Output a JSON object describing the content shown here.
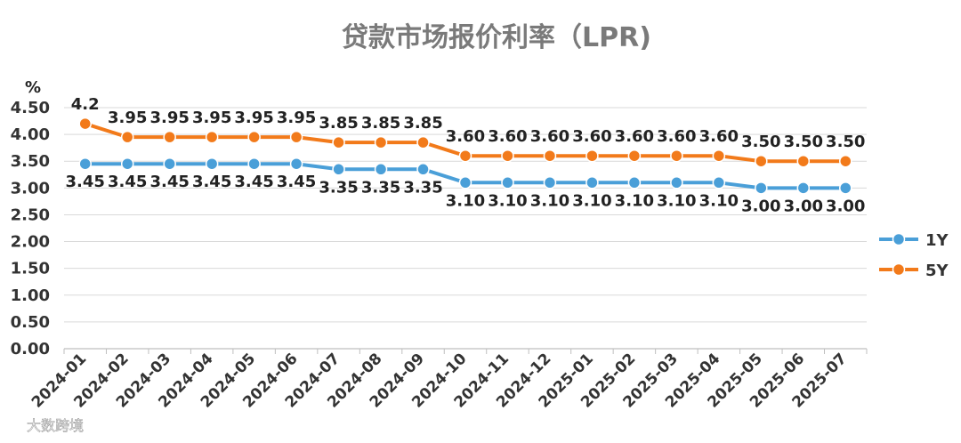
{
  "chart_data": {
    "type": "line",
    "title": "贷款市场报价利率（LPR)",
    "ylabel": "%",
    "xlabel": "",
    "ylim": [
      0,
      4.5
    ],
    "yticks": [
      "0.00",
      "0.50",
      "1.00",
      "1.50",
      "2.00",
      "2.50",
      "3.00",
      "3.50",
      "4.00",
      "4.50"
    ],
    "categories": [
      "2024-01",
      "2024-02",
      "2024-03",
      "2024-04",
      "2024-05",
      "2024-06",
      "2024-07",
      "2024-08",
      "2024-09",
      "2024-10",
      "2024-11",
      "2024-12",
      "2025-01",
      "2025-02",
      "2025-03",
      "2025-04",
      "2025-05",
      "2025-06",
      "2025-07"
    ],
    "grid": true,
    "legend_position": "right",
    "series": [
      {
        "name": "1Y",
        "color": "#4a9fd8",
        "values": [
          3.45,
          3.45,
          3.45,
          3.45,
          3.45,
          3.45,
          3.35,
          3.35,
          3.35,
          3.1,
          3.1,
          3.1,
          3.1,
          3.1,
          3.1,
          3.1,
          3.0,
          3.0,
          3.0
        ],
        "labels": [
          "3.45",
          "3.45",
          "3.45",
          "3.45",
          "3.45",
          "3.45",
          "3.35",
          "3.35",
          "3.35",
          "3.10",
          "3.10",
          "3.10",
          "3.10",
          "3.10",
          "3.10",
          "3.10",
          "3.00",
          "3.00",
          "3.00"
        ]
      },
      {
        "name": "5Y",
        "color": "#f27a1a",
        "values": [
          4.2,
          3.95,
          3.95,
          3.95,
          3.95,
          3.95,
          3.85,
          3.85,
          3.85,
          3.6,
          3.6,
          3.6,
          3.6,
          3.6,
          3.6,
          3.6,
          3.5,
          3.5,
          3.5
        ],
        "labels": [
          "4.2",
          "3.95",
          "3.95",
          "3.95",
          "3.95",
          "3.95",
          "3.85",
          "3.85",
          "3.85",
          "3.60",
          "3.60",
          "3.60",
          "3.60",
          "3.60",
          "3.60",
          "3.60",
          "3.50",
          "3.50",
          "3.50"
        ]
      }
    ]
  },
  "watermark": {
    "text": "大数跨境"
  }
}
